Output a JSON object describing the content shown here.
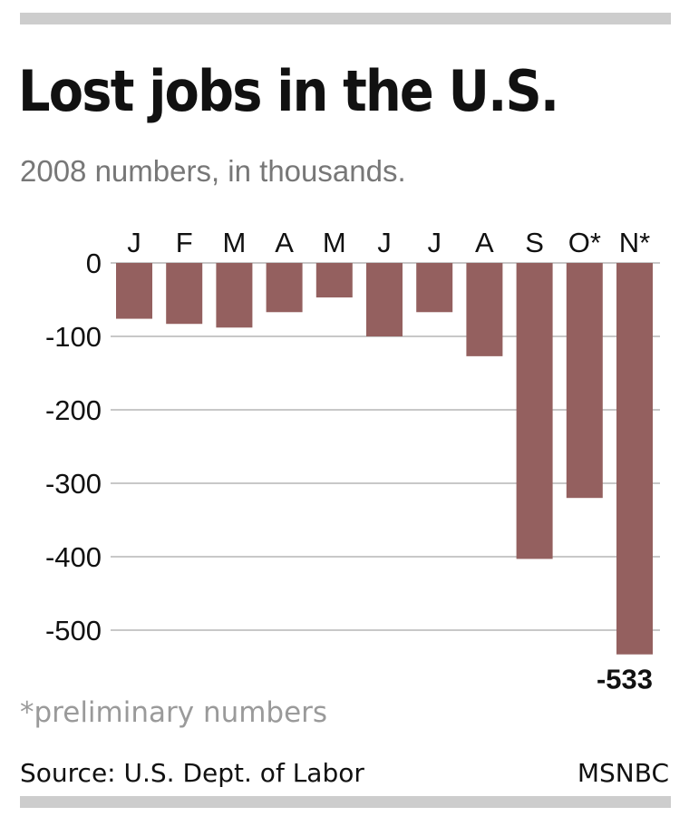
{
  "header": {
    "title": "Lost jobs in the U.S.",
    "subtitle": "2008 numbers, in thousands."
  },
  "footer": {
    "note": "*preliminary numbers",
    "source": "Source: U.S. Dept. of Labor",
    "credit": "MSNBC"
  },
  "chart_data": {
    "type": "bar",
    "title": "Lost jobs in the U.S.",
    "subtitle": "2008 numbers, in thousands.",
    "categories": [
      "J",
      "F",
      "M",
      "A",
      "M",
      "J",
      "J",
      "A",
      "S",
      "O*",
      "N*"
    ],
    "values": [
      -76,
      -83,
      -88,
      -67,
      -47,
      -100,
      -67,
      -127,
      -403,
      -320,
      -533
    ],
    "ylim": [
      -540,
      0
    ],
    "yticks": [
      0,
      -100,
      -200,
      -300,
      -400,
      -500
    ],
    "ytick_labels": [
      "0",
      "-100",
      "-200",
      "-300",
      "-400",
      "-500"
    ],
    "data_labels": [
      {
        "index": 10,
        "text": "-533"
      }
    ],
    "grid": true,
    "colors": {
      "bar": "#94605f",
      "grid": "#c8c8c8",
      "text": "#111111"
    }
  }
}
